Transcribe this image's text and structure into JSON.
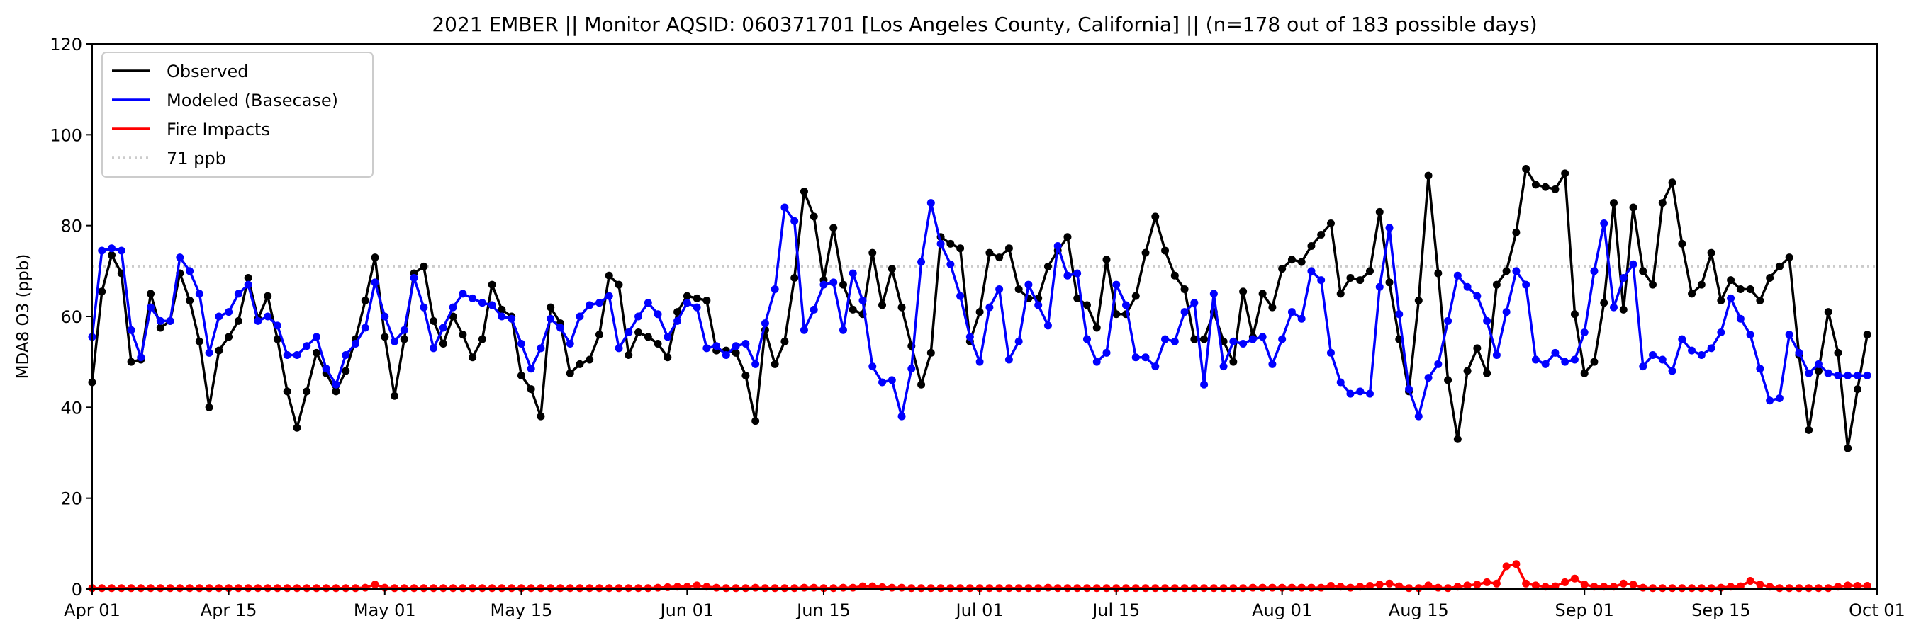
{
  "chart_data": {
    "type": "line",
    "title": "2021 EMBER || Monitor AQSID: 060371701 [Los Angeles County, California] || (n=178 out of 183 possible days)",
    "xlabel": "",
    "ylabel": "MDA8 O3 (ppb)",
    "ylim": [
      0,
      120
    ],
    "yticks": [
      0,
      20,
      40,
      60,
      80,
      100,
      120
    ],
    "x_start": "2021-04-01",
    "x_days": 183,
    "xticks": [
      {
        "label": "Apr 01",
        "day": 0
      },
      {
        "label": "Apr 15",
        "day": 14
      },
      {
        "label": "May 01",
        "day": 30
      },
      {
        "label": "May 15",
        "day": 44
      },
      {
        "label": "Jun 01",
        "day": 61
      },
      {
        "label": "Jun 15",
        "day": 75
      },
      {
        "label": "Jul 01",
        "day": 91
      },
      {
        "label": "Jul 15",
        "day": 105
      },
      {
        "label": "Aug 01",
        "day": 122
      },
      {
        "label": "Aug 15",
        "day": 136
      },
      {
        "label": "Sep 01",
        "day": 153
      },
      {
        "label": "Sep 15",
        "day": 167
      },
      {
        "label": "Oct 01",
        "day": 183
      }
    ],
    "legend_position": "top-left",
    "threshold": {
      "label": "71 ppb",
      "value": 71,
      "color": "#cccccc"
    },
    "series": [
      {
        "name": "Observed",
        "color": "#000000",
        "values": [
          45.5,
          65.5,
          73.5,
          69.5,
          50,
          50.5,
          65,
          57.5,
          59,
          69.5,
          63.5,
          54.5,
          40,
          52.5,
          55.5,
          59,
          68.5,
          59.5,
          64.5,
          55,
          43.5,
          35.5,
          43.5,
          52,
          47.5,
          43.5,
          48,
          55,
          63.5,
          73,
          55.5,
          42.5,
          55,
          69.5,
          71,
          59,
          54,
          60,
          56,
          51,
          55,
          67,
          61.5,
          60,
          47,
          44,
          38,
          62,
          58.5,
          47.5,
          49.5,
          50.5,
          56,
          69,
          67,
          51.5,
          56.5,
          55.5,
          54,
          51,
          61,
          64.5,
          64,
          63.5,
          52.5,
          52.5,
          52,
          47,
          37,
          57,
          49.5,
          54.5,
          68.5,
          87.5,
          82,
          68,
          79.5,
          67,
          61.5,
          60.5,
          74,
          62.5,
          70.5,
          62,
          53.5,
          45,
          52,
          77.5,
          76,
          75,
          54.5,
          61,
          74,
          73,
          75,
          66,
          64,
          64,
          71,
          74.5,
          77.5,
          64,
          62.5,
          57.5,
          72.5,
          60.5,
          60.5,
          64.5,
          74,
          82,
          74.5,
          69,
          66,
          55,
          55,
          61,
          54.5,
          50,
          65.5,
          55.5,
          65,
          62,
          70.5,
          72.5,
          72,
          75.5,
          78,
          80.5,
          65,
          68.5,
          68,
          70,
          83,
          67.5,
          55,
          43.5,
          63.5,
          91,
          69.5,
          46,
          33,
          48,
          53,
          47.5,
          67,
          70,
          78.5,
          92.5,
          89,
          88.5,
          88,
          91.5,
          60.5,
          47.5,
          50,
          63,
          85,
          61.5,
          84,
          70,
          67,
          85,
          89.5,
          76,
          65,
          67,
          74,
          63.5,
          68,
          66,
          66,
          63.5,
          68.5,
          71,
          73,
          51.5,
          35,
          48,
          61,
          52,
          31,
          44,
          56
        ]
      },
      {
        "name": "Modeled (Basecase)",
        "color": "#0000ff",
        "values": [
          55.5,
          74.5,
          75,
          74.5,
          57,
          51,
          62,
          59,
          59,
          73,
          70,
          65,
          52,
          60,
          61,
          65,
          67,
          59,
          60,
          58,
          51.5,
          51.5,
          53.5,
          55.5,
          48.5,
          45,
          51.5,
          54,
          57.5,
          67.5,
          60,
          54.5,
          57,
          68.5,
          62,
          53,
          57.5,
          62,
          65,
          64,
          63,
          62.5,
          60,
          59.5,
          54,
          48.5,
          53,
          59.5,
          57.5,
          54,
          60,
          62.5,
          63,
          64.5,
          53,
          56.5,
          60,
          63,
          60.5,
          55.5,
          59,
          63,
          62,
          53,
          53.5,
          51.5,
          53.5,
          54,
          49.5,
          58.5,
          66,
          84,
          81,
          57,
          61.5,
          67,
          67.5,
          57,
          69.5,
          63.5,
          49,
          45.5,
          46,
          38,
          48.5,
          72,
          85,
          76,
          71.5,
          64.5,
          55.5,
          50,
          62,
          66,
          50.5,
          54.5,
          67,
          62.5,
          58,
          75.5,
          69,
          69.5,
          55,
          50,
          52,
          67,
          62.5,
          51,
          51,
          49,
          55,
          54.5,
          61,
          63,
          45,
          65,
          49,
          54.5,
          54,
          55,
          55.5,
          49.5,
          55,
          61,
          59.5,
          70,
          68,
          52,
          45.5,
          43,
          43.5,
          43,
          66.5,
          79.5,
          60.5,
          44,
          38,
          46.5,
          49.5,
          59,
          69,
          66.5,
          64.5,
          59,
          51.5,
          61,
          70,
          67,
          50.5,
          49.5,
          52,
          50,
          50.5,
          56.5,
          70,
          80.5,
          62,
          68.5,
          71.5,
          49,
          51.5,
          50.5,
          48,
          55,
          52.5,
          51.5,
          53,
          56.5,
          64,
          59.5,
          56,
          48.5,
          41.5,
          42,
          56,
          52,
          47.5,
          49.5,
          47.5,
          47,
          47,
          47,
          47
        ]
      },
      {
        "name": "Fire Impacts",
        "color": "#ff0000",
        "values": [
          0.2,
          0.2,
          0.2,
          0.2,
          0.2,
          0.2,
          0.2,
          0.2,
          0.2,
          0.2,
          0.2,
          0.2,
          0.2,
          0.2,
          0.2,
          0.2,
          0.2,
          0.2,
          0.2,
          0.2,
          0.2,
          0.2,
          0.2,
          0.2,
          0.2,
          0.2,
          0.2,
          0.2,
          0.3,
          1.0,
          0.3,
          0.2,
          0.2,
          0.2,
          0.2,
          0.2,
          0.2,
          0.2,
          0.2,
          0.2,
          0.2,
          0.2,
          0.2,
          0.2,
          0.2,
          0.2,
          0.2,
          0.2,
          0.2,
          0.2,
          0.2,
          0.2,
          0.2,
          0.2,
          0.2,
          0.2,
          0.2,
          0.2,
          0.3,
          0.4,
          0.5,
          0.5,
          0.8,
          0.5,
          0.3,
          0.2,
          0.2,
          0.2,
          0.3,
          0.2,
          0.2,
          0.2,
          0.2,
          0.3,
          0.3,
          0.2,
          0.2,
          0.3,
          0.3,
          0.6,
          0.6,
          0.4,
          0.3,
          0.3,
          0.2,
          0.2,
          0.2,
          0.2,
          0.2,
          0.2,
          0.2,
          0.2,
          0.2,
          0.2,
          0.2,
          0.2,
          0.2,
          0.2,
          0.3,
          0.2,
          0.2,
          0.2,
          0.2,
          0.2,
          0.2,
          0.2,
          0.2,
          0.2,
          0.2,
          0.2,
          0.2,
          0.2,
          0.2,
          0.2,
          0.2,
          0.2,
          0.2,
          0.2,
          0.2,
          0.3,
          0.3,
          0.3,
          0.3,
          0.3,
          0.3,
          0.3,
          0.3,
          0.7,
          0.5,
          0.3,
          0.5,
          0.7,
          1.0,
          1.2,
          0.6,
          0.2,
          0.2,
          0.8,
          0.3,
          0.2,
          0.5,
          0.8,
          1.0,
          1.5,
          1.2,
          5.0,
          5.5,
          1.2,
          0.8,
          0.5,
          0.6,
          1.5,
          2.3,
          1.0,
          0.5,
          0.5,
          0.5,
          1.2,
          1.0,
          0.3,
          0.2,
          0.2,
          0.2,
          0.2,
          0.2,
          0.2,
          0.2,
          0.3,
          0.5,
          0.6,
          1.8,
          1.0,
          0.5,
          0.2,
          0.2,
          0.2,
          0.2,
          0.2,
          0.2,
          0.5,
          0.8,
          0.7,
          0.7
        ]
      }
    ]
  }
}
